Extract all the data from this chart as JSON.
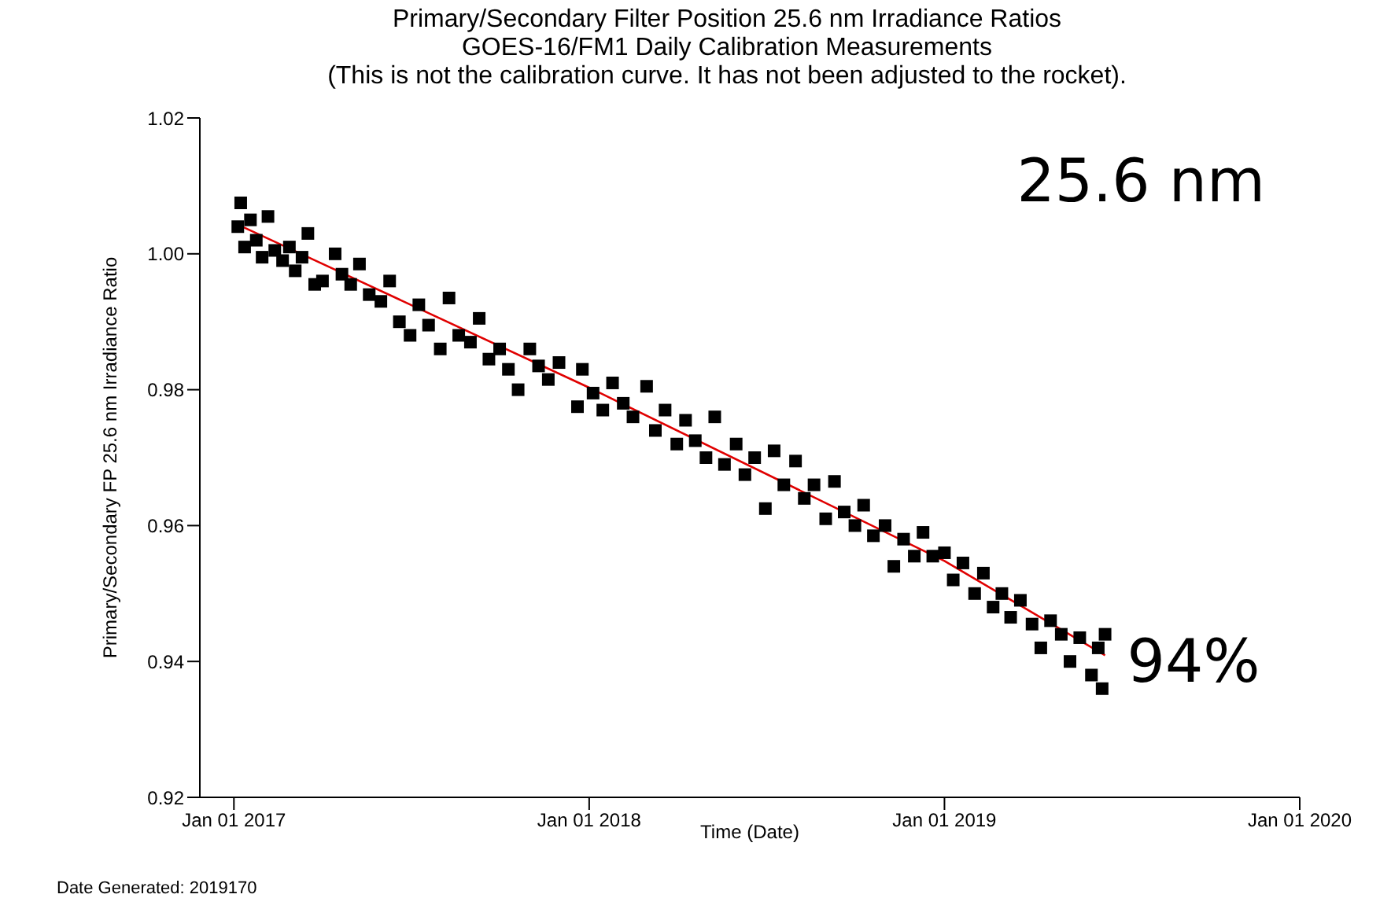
{
  "chart_data": {
    "type": "scatter",
    "title": "Primary/Secondary Filter Position 25.6 nm Irradiance Ratios",
    "subtitle": "GOES-16/FM1 Daily Calibration Measurements",
    "xlabel": "Time (Date)",
    "ylabel": "Primary/Secondary FP 25.6 nm Irradiance Ratio",
    "annotations": [
      "(This is not the calibration curve. It has not been adjusted to the rocket).",
      "25.6 nm",
      {
        "text": "94%",
        "x": "2019-06-15",
        "y": 0.94
      },
      "Date Generated: 2019170"
    ],
    "xlim": [
      "2016-11-27",
      "2020-01-01"
    ],
    "xticks": [
      {
        "value": "2017-01-01",
        "label": "Jan 01 2017"
      },
      {
        "value": "2018-01-01",
        "label": "Jan 01 2018"
      },
      {
        "value": "2019-01-01",
        "label": "Jan 01 2019"
      },
      {
        "value": "2020-01-01",
        "label": "Jan 01 2020"
      }
    ],
    "ylim": [
      0.92,
      1.02
    ],
    "yticks": [
      0.92,
      0.94,
      0.96,
      0.98,
      {
        "value": 1.0,
        "label": "1.00"
      },
      1.02
    ],
    "series": [
      {
        "color": "#000000",
        "marker": "square",
        "x": [
          "2017-01-05",
          "2017-01-08",
          "2017-01-12",
          "2017-01-18",
          "2017-01-24",
          "2017-01-30",
          "2017-02-05",
          "2017-02-12",
          "2017-02-20",
          "2017-02-27",
          "2017-03-05",
          "2017-03-12",
          "2017-03-18",
          "2017-03-25",
          "2017-04-02",
          "2017-04-15",
          "2017-04-22",
          "2017-05-01",
          "2017-05-10",
          "2017-05-20",
          "2017-06-01",
          "2017-06-10",
          "2017-06-20",
          "2017-07-01",
          "2017-07-10",
          "2017-07-20",
          "2017-08-01",
          "2017-08-10",
          "2017-08-20",
          "2017-09-01",
          "2017-09-10",
          "2017-09-20",
          "2017-10-01",
          "2017-10-10",
          "2017-10-20",
          "2017-11-01",
          "2017-11-10",
          "2017-11-20",
          "2017-12-01",
          "2017-12-20",
          "2017-12-25",
          "2018-01-05",
          "2018-01-15",
          "2018-01-25",
          "2018-02-05",
          "2018-02-15",
          "2018-03-01",
          "2018-03-10",
          "2018-03-20",
          "2018-04-01",
          "2018-04-10",
          "2018-04-20",
          "2018-05-01",
          "2018-05-10",
          "2018-05-20",
          "2018-06-01",
          "2018-06-10",
          "2018-06-20",
          "2018-07-01",
          "2018-07-10",
          "2018-07-20",
          "2018-08-01",
          "2018-08-10",
          "2018-08-20",
          "2018-09-01",
          "2018-09-10",
          "2018-09-20",
          "2018-10-01",
          "2018-10-10",
          "2018-10-20",
          "2018-11-01",
          "2018-11-10",
          "2018-11-20",
          "2018-12-01",
          "2018-12-10",
          "2018-12-20",
          "2019-01-01",
          "2019-01-10",
          "2019-01-20",
          "2019-02-01",
          "2019-02-10",
          "2019-02-20",
          "2019-03-01",
          "2019-03-10",
          "2019-03-20",
          "2019-04-01",
          "2019-04-10",
          "2019-04-20",
          "2019-05-01",
          "2019-05-10",
          "2019-05-20",
          "2019-06-01",
          "2019-06-08",
          "2019-06-12",
          "2019-06-15"
        ],
        "values": [
          1.004,
          1.0075,
          1.001,
          1.005,
          1.002,
          0.9995,
          1.0055,
          1.0005,
          0.999,
          1.001,
          0.9975,
          0.9995,
          1.003,
          0.9955,
          0.996,
          1.0,
          0.997,
          0.9955,
          0.9985,
          0.994,
          0.993,
          0.996,
          0.99,
          0.988,
          0.9925,
          0.9895,
          0.986,
          0.9935,
          0.988,
          0.987,
          0.9905,
          0.9845,
          0.986,
          0.983,
          0.98,
          0.986,
          0.9835,
          0.9815,
          0.984,
          0.9775,
          0.983,
          0.9795,
          0.977,
          0.981,
          0.978,
          0.976,
          0.9805,
          0.974,
          0.977,
          0.972,
          0.9755,
          0.9725,
          0.97,
          0.976,
          0.969,
          0.972,
          0.9675,
          0.97,
          0.9625,
          0.971,
          0.966,
          0.9695,
          0.964,
          0.966,
          0.961,
          0.9665,
          0.962,
          0.96,
          0.963,
          0.9585,
          0.96,
          0.954,
          0.958,
          0.9555,
          0.959,
          0.9555,
          0.956,
          0.952,
          0.9545,
          0.95,
          0.953,
          0.948,
          0.95,
          0.9465,
          0.949,
          0.9455,
          0.942,
          0.946,
          0.944,
          0.94,
          0.9435,
          0.938,
          0.942,
          0.936,
          0.944
        ]
      },
      {
        "type": "line",
        "color": "#e00000",
        "x": [
          "2017-01-05",
          "2017-04-10",
          "2018-01-01",
          "2019-01-01",
          "2019-06-15"
        ],
        "values": [
          1.0043,
          0.998,
          0.9803,
          0.9548,
          0.9409
        ]
      }
    ]
  }
}
